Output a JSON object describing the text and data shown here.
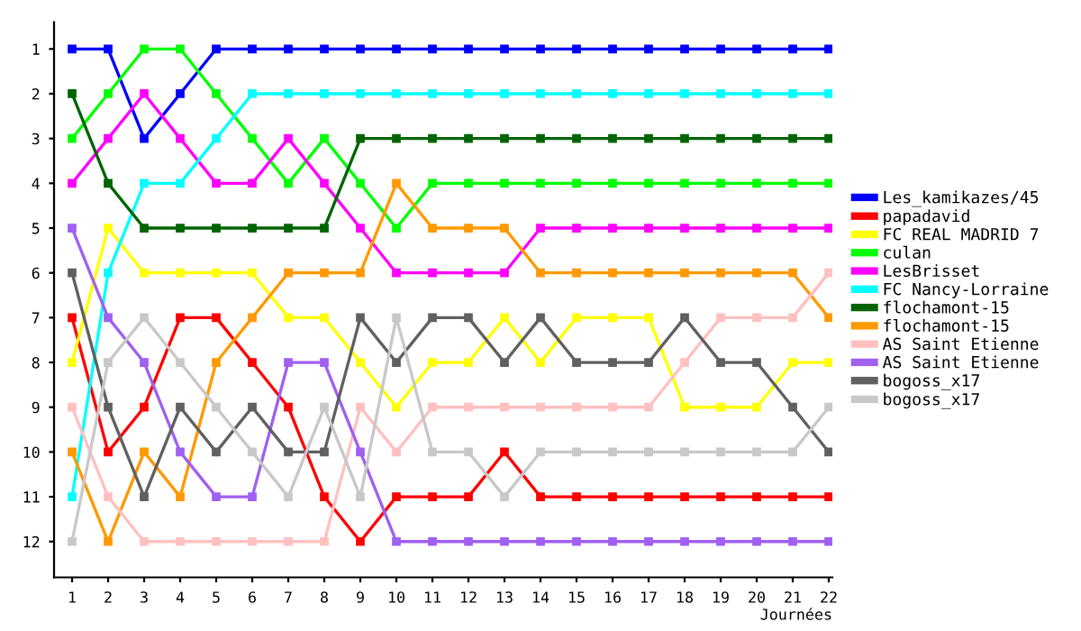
{
  "chart_data": {
    "type": "line",
    "xlabel": "Journées",
    "x": [
      1,
      2,
      3,
      4,
      5,
      6,
      7,
      8,
      9,
      10,
      11,
      12,
      13,
      14,
      15,
      16,
      17,
      18,
      19,
      20,
      21,
      22
    ],
    "xlim": [
      0.5,
      22.1
    ],
    "ylim": [
      12.8,
      0.4
    ],
    "xticks": [
      1,
      2,
      3,
      4,
      5,
      6,
      7,
      8,
      9,
      10,
      11,
      12,
      13,
      14,
      15,
      16,
      17,
      18,
      19,
      20,
      21,
      22
    ],
    "yticks": [
      1,
      2,
      3,
      4,
      5,
      6,
      7,
      8,
      9,
      10,
      11,
      12
    ],
    "marker": "square",
    "line_style": "solid",
    "grid": false,
    "legend": "right",
    "series": [
      {
        "name": "Les_kamikazes/45",
        "color": "#0000ff",
        "values": [
          1,
          1,
          3,
          2,
          1,
          1,
          1,
          1,
          1,
          1,
          1,
          1,
          1,
          1,
          1,
          1,
          1,
          1,
          1,
          1,
          1,
          1
        ]
      },
      {
        "name": "papadavid",
        "color": "#ff0000",
        "values": [
          7,
          10,
          9,
          7,
          7,
          8,
          9,
          11,
          12,
          11,
          11,
          11,
          10,
          11,
          11,
          11,
          11,
          11,
          11,
          11,
          11,
          11
        ]
      },
      {
        "name": "FC REAL MADRID 7",
        "color": "#ffff00",
        "values": [
          8,
          5,
          6,
          6,
          6,
          6,
          7,
          7,
          8,
          9,
          8,
          8,
          7,
          8,
          7,
          7,
          7,
          9,
          9,
          9,
          8,
          8
        ]
      },
      {
        "name": "culan",
        "color": "#00ff00",
        "values": [
          3,
          2,
          1,
          1,
          2,
          3,
          4,
          3,
          4,
          5,
          4,
          4,
          4,
          4,
          4,
          4,
          4,
          4,
          4,
          4,
          4,
          4
        ]
      },
      {
        "name": "LesBrisset",
        "color": "#ff00ff",
        "values": [
          4,
          3,
          2,
          3,
          4,
          4,
          3,
          4,
          5,
          6,
          6,
          6,
          6,
          5,
          5,
          5,
          5,
          5,
          5,
          5,
          5,
          5
        ]
      },
      {
        "name": "FC Nancy-Lorraine",
        "color": "#00ffff",
        "values": [
          11,
          6,
          4,
          4,
          3,
          2,
          2,
          2,
          2,
          2,
          2,
          2,
          2,
          2,
          2,
          2,
          2,
          2,
          2,
          2,
          2,
          2
        ]
      },
      {
        "name": "flochamont-15",
        "color": "#006400",
        "values": [
          2,
          4,
          5,
          5,
          5,
          5,
          5,
          5,
          3,
          3,
          3,
          3,
          3,
          3,
          3,
          3,
          3,
          3,
          3,
          3,
          3,
          3
        ]
      },
      {
        "name": "flochamont-15",
        "color": "#ff9900",
        "values": [
          10,
          12,
          10,
          11,
          8,
          7,
          6,
          6,
          6,
          4,
          5,
          5,
          5,
          6,
          6,
          6,
          6,
          6,
          6,
          6,
          6,
          7
        ]
      },
      {
        "name": "AS Saint Etienne",
        "color": "#ffc0c0",
        "values": [
          9,
          11,
          12,
          12,
          12,
          12,
          12,
          12,
          9,
          10,
          9,
          9,
          9,
          9,
          9,
          9,
          9,
          8,
          7,
          7,
          7,
          6
        ]
      },
      {
        "name": "AS Saint Etienne",
        "color": "#a060f0",
        "values": [
          5,
          7,
          8,
          10,
          11,
          11,
          8,
          8,
          10,
          12,
          12,
          12,
          12,
          12,
          12,
          12,
          12,
          12,
          12,
          12,
          12,
          12
        ]
      },
      {
        "name": "bogoss_x17",
        "color": "#606060",
        "values": [
          6,
          9,
          11,
          9,
          10,
          9,
          10,
          10,
          7,
          8,
          7,
          7,
          8,
          7,
          8,
          8,
          8,
          7,
          8,
          8,
          9,
          10
        ]
      },
      {
        "name": "bogoss_x17",
        "color": "#c8c8c8",
        "values": [
          12,
          8,
          7,
          8,
          9,
          10,
          11,
          9,
          11,
          7,
          10,
          10,
          11,
          10,
          10,
          10,
          10,
          10,
          10,
          10,
          10,
          9
        ]
      }
    ]
  }
}
